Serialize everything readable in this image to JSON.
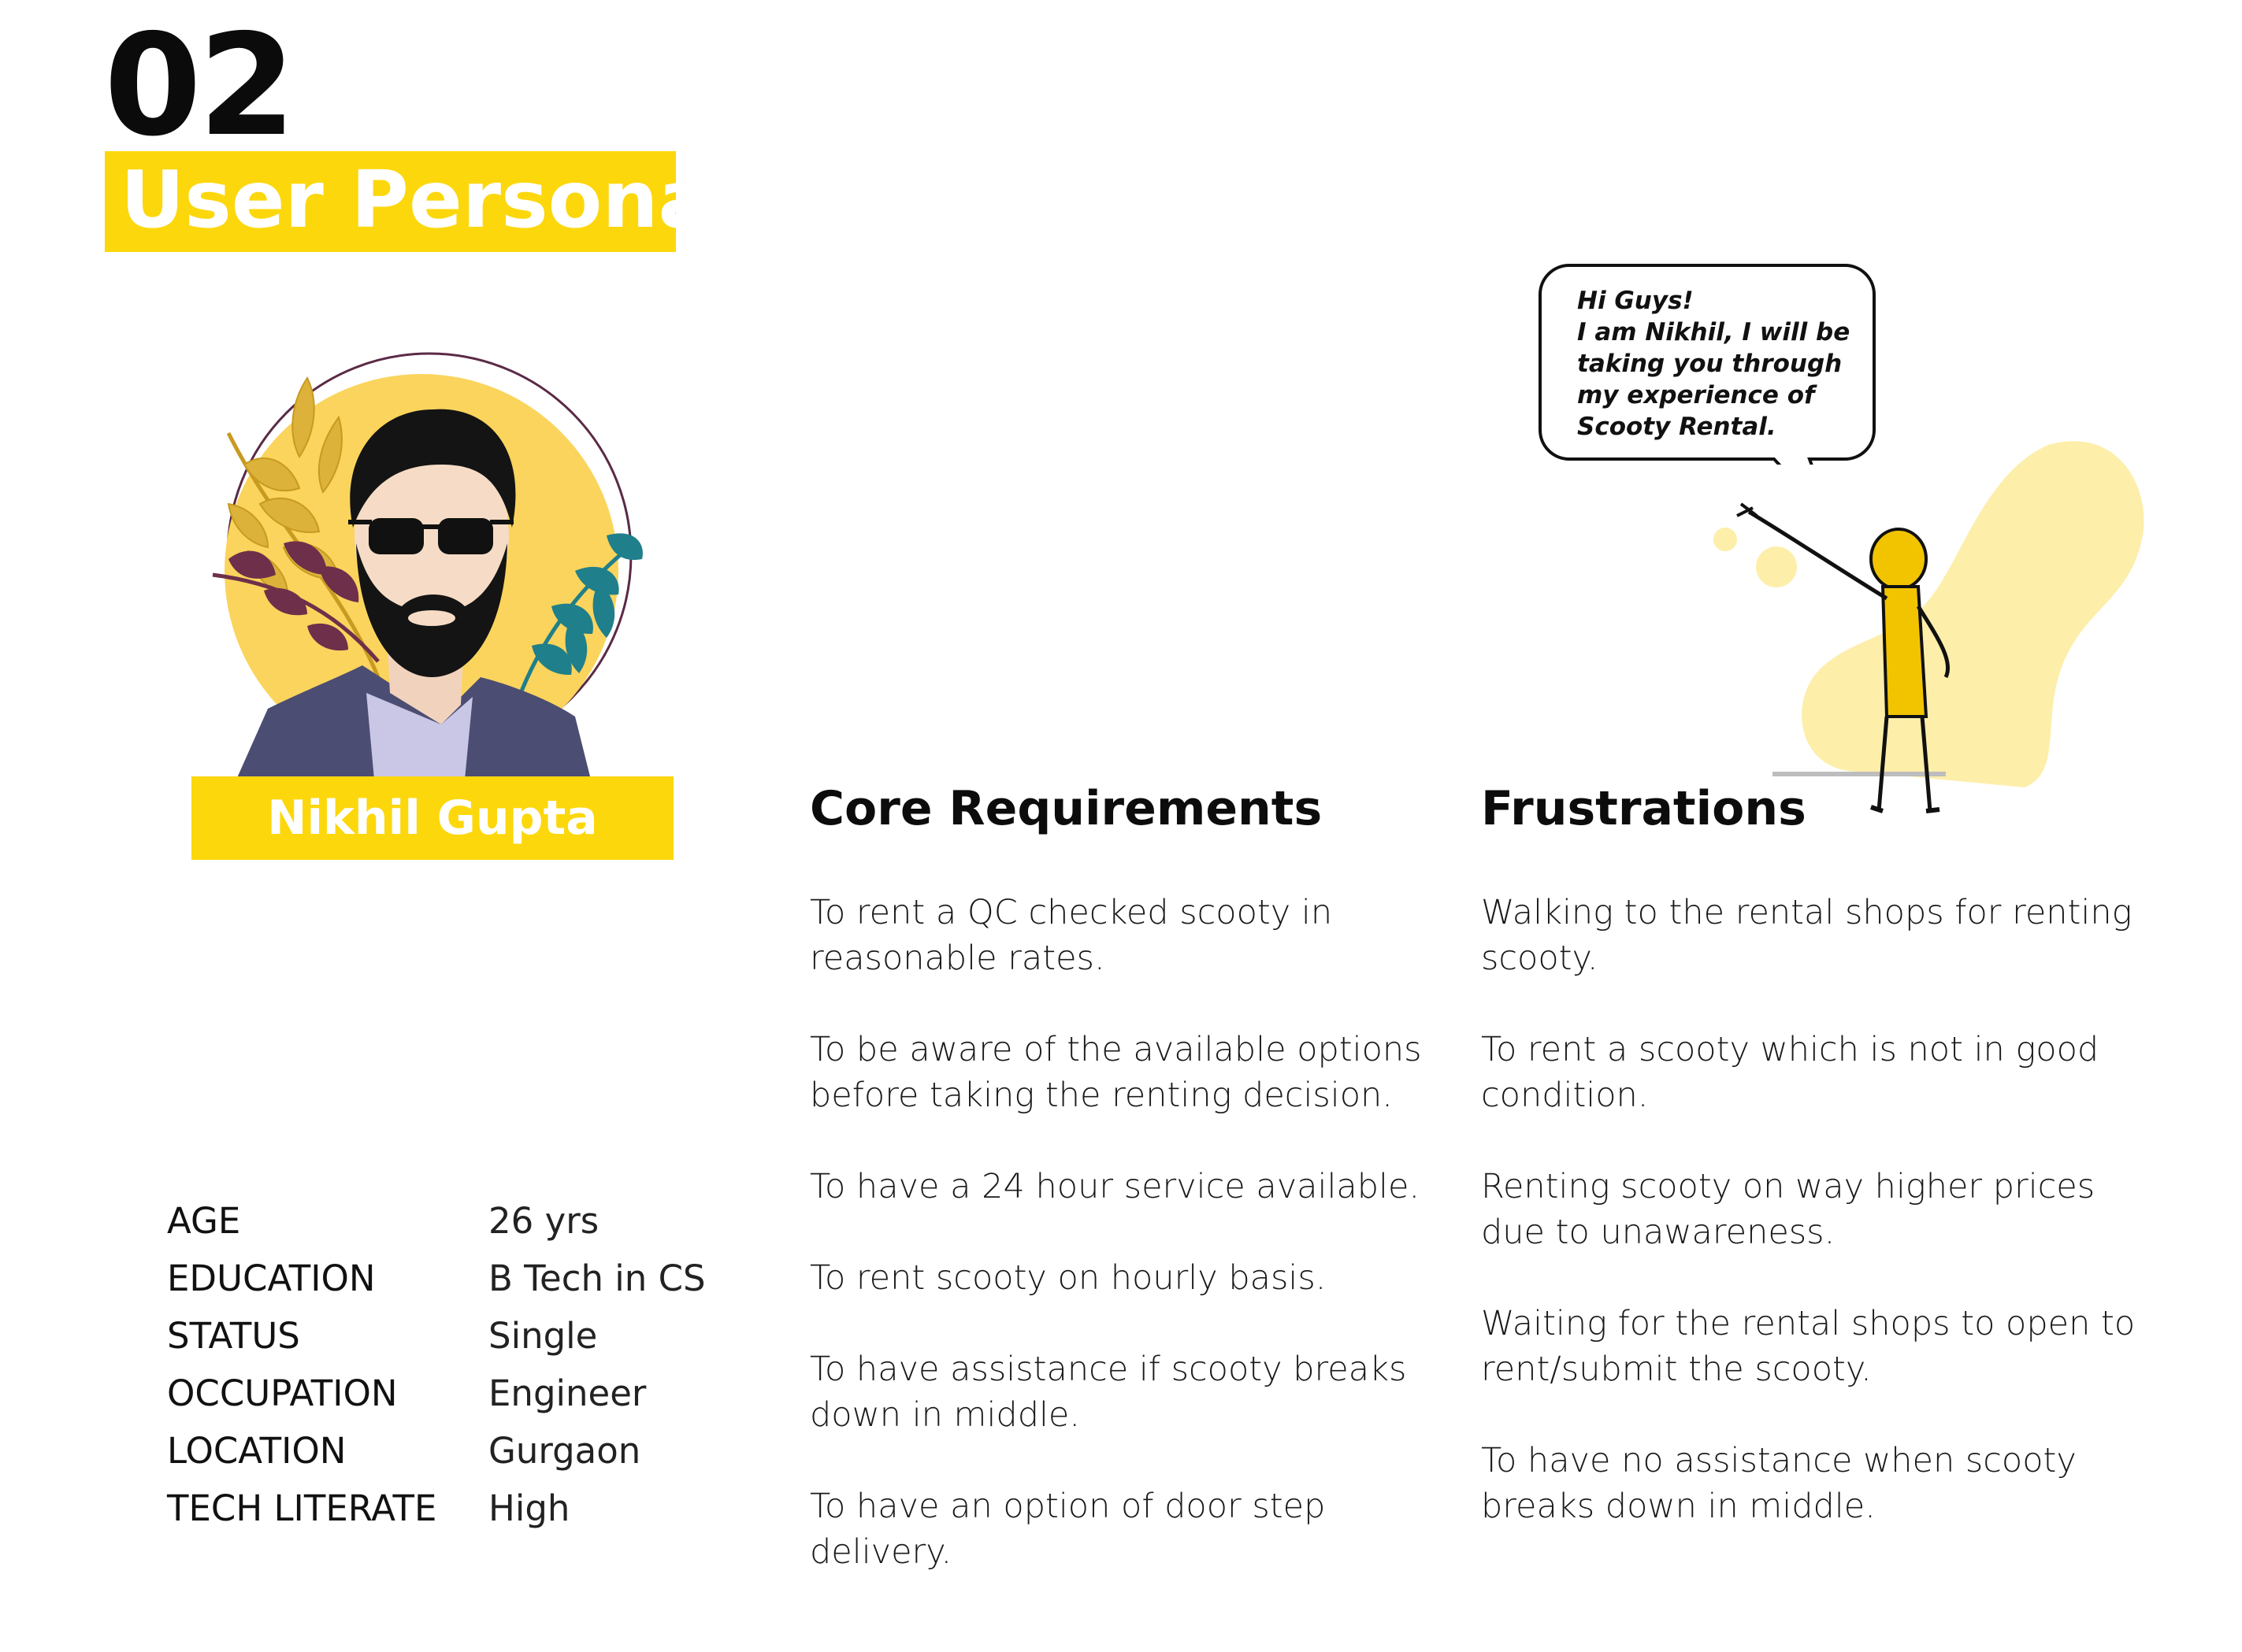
{
  "header": {
    "section_number": "02",
    "title": "User Persona"
  },
  "persona": {
    "name": "Nikhil Gupta"
  },
  "speech_bubble": {
    "lines": [
      "Hi Guys!",
      "I am Nikhil, I will be",
      "taking you through",
      "my experience of",
      "Scooty Rental."
    ]
  },
  "facts": [
    {
      "label": "AGE",
      "value": "26 yrs"
    },
    {
      "label": "EDUCATION",
      "value": "B Tech in CS"
    },
    {
      "label": "STATUS",
      "value": "Single"
    },
    {
      "label": "OCCUPATION",
      "value": "Engineer"
    },
    {
      "label": "LOCATION",
      "value": "Gurgaon"
    },
    {
      "label": "TECH LITERATE",
      "value": "High"
    }
  ],
  "core_requirements": {
    "title": "Core Requirements",
    "items": [
      "To rent a QC checked scooty in reasonable rates.",
      "To be aware of the available options before taking the renting decision.",
      "To have a 24 hour service available.",
      "To rent scooty on hourly basis.",
      "To have assistance if scooty breaks down in middle.",
      "To have an option of door step delivery."
    ]
  },
  "frustrations": {
    "title": "Frustrations",
    "items": [
      "Walking to the rental shops for renting scooty.",
      "To rent a scooty which is not in good condition.",
      "Renting scooty on way higher prices due to unawareness.",
      "Waiting for the rental shops to open to rent/submit the scooty.",
      "To have no assistance when scooty breaks down in middle."
    ]
  },
  "colors": {
    "accent_yellow": "#fcd70c",
    "pale_yellow": "#fdeeaa",
    "circle_yellow": "#fad45c",
    "jacket": "#4b4d72",
    "leaf_teal": "#1f7f8a",
    "leaf_plum": "#6e2f4a",
    "leaf_gold": "#dcb23a"
  }
}
